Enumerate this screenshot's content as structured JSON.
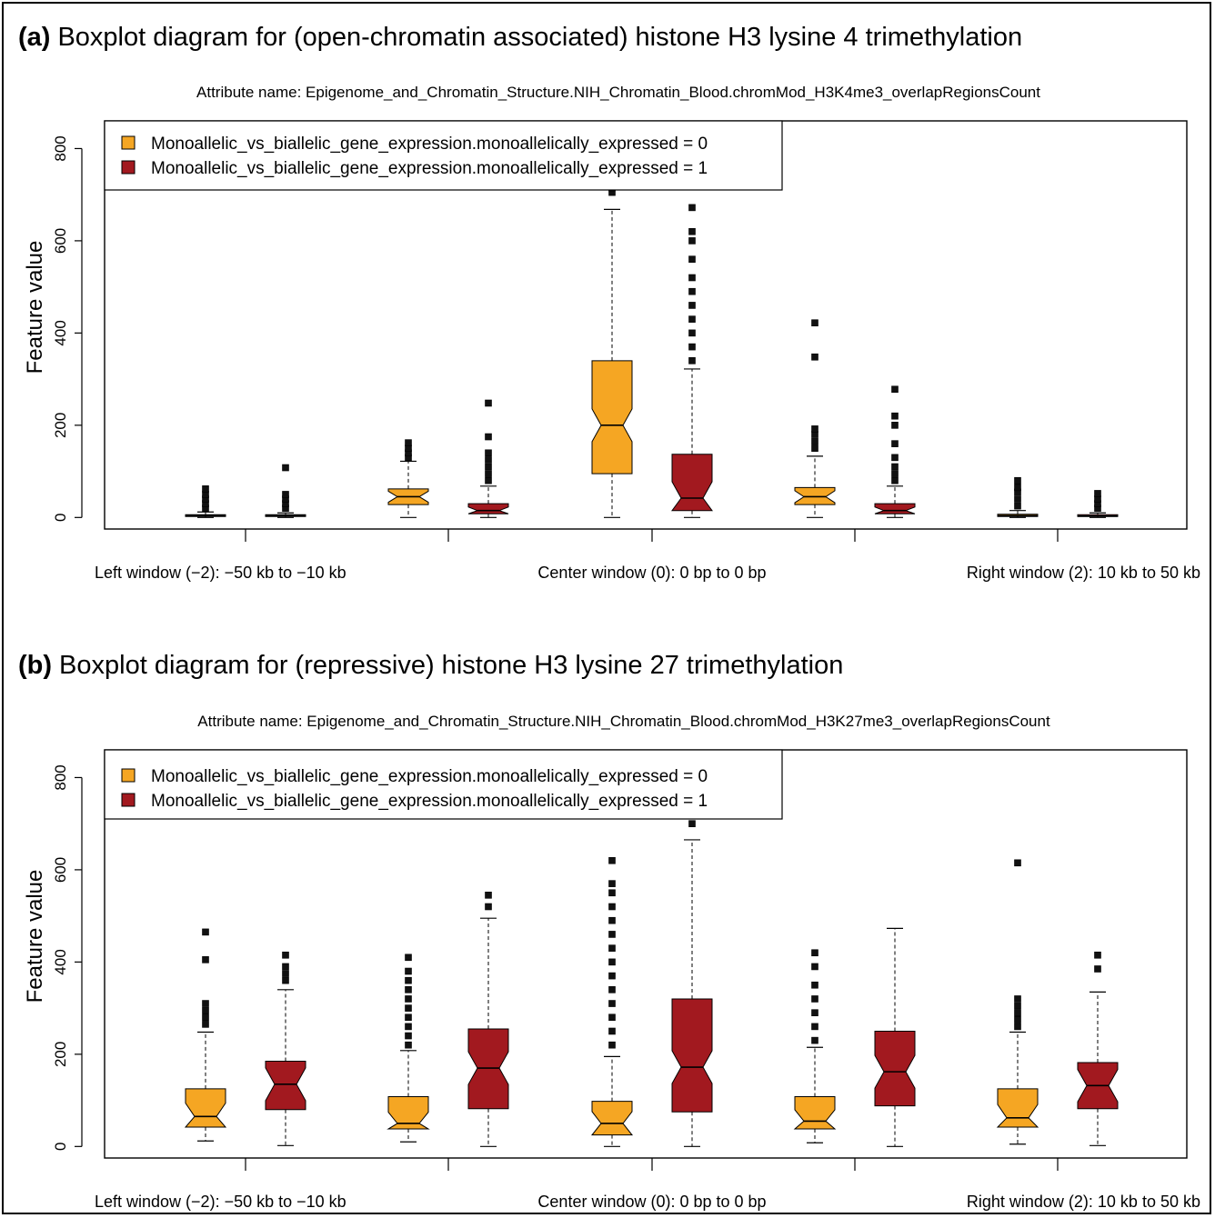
{
  "colors": {
    "group0": "#f5a623",
    "group1": "#a2191f",
    "outlier": "#111111"
  },
  "chart_data": [
    {
      "type": "boxplot",
      "panel_tag": "(a)",
      "title": "Boxplot diagram for (open-chromatin associated) histone H3 lysine 4 trimethylation",
      "subtitle": "Attribute name: Epigenome_and_Chromatin_Structure.NIH_Chromatin_Blood.chromMod_H3K4me3_overlapRegionsCount",
      "ylabel": "Feature value",
      "ylim": [
        -25,
        860
      ],
      "yticks": [
        0,
        200,
        400,
        600,
        800
      ],
      "legend": {
        "position": "top-left",
        "entries": [
          "Monoallelic_vs_biallelic_gene_expression.monoallelically_expressed = 0",
          "Monoallelic_vs_biallelic_gene_expression.monoallelically_expressed = 1"
        ]
      },
      "window_labels": [
        "Left window (−2): −50 kb to −10 kb",
        "Center window (0): 0 bp to 0 bp",
        "Right window (2): 10 kb to 50 kb"
      ],
      "boxes": [
        {
          "window": -2,
          "group": 0,
          "min": 0,
          "q1": 2,
          "median": 4,
          "q3": 6,
          "max": 12,
          "outliers": [
            20,
            30,
            40,
            50,
            62
          ]
        },
        {
          "window": -2,
          "group": 1,
          "min": 0,
          "q1": 2,
          "median": 4,
          "q3": 6,
          "max": 10,
          "outliers": [
            20,
            30,
            40,
            50,
            108
          ]
        },
        {
          "window": -1,
          "group": 0,
          "min": 0,
          "q1": 28,
          "median": 45,
          "q3": 62,
          "max": 122,
          "outliers": [
            130,
            140,
            150,
            162
          ]
        },
        {
          "window": -1,
          "group": 1,
          "min": 0,
          "q1": 8,
          "median": 15,
          "q3": 30,
          "max": 68,
          "outliers": [
            80,
            95,
            110,
            125,
            140,
            175,
            248
          ]
        },
        {
          "window": 0,
          "group": 0,
          "min": 0,
          "q1": 95,
          "median": 200,
          "q3": 340,
          "max": 668,
          "outliers": [
            705,
            715,
            782
          ]
        },
        {
          "window": 0,
          "group": 1,
          "min": 0,
          "q1": 15,
          "median": 42,
          "q3": 137,
          "max": 322,
          "outliers": [
            340,
            370,
            400,
            430,
            460,
            490,
            520,
            560,
            600,
            620,
            672,
            728
          ]
        },
        {
          "window": 1,
          "group": 0,
          "min": 0,
          "q1": 28,
          "median": 45,
          "q3": 65,
          "max": 133,
          "outliers": [
            150,
            165,
            180,
            192,
            348,
            422
          ]
        },
        {
          "window": 1,
          "group": 1,
          "min": 0,
          "q1": 8,
          "median": 15,
          "q3": 30,
          "max": 68,
          "outliers": [
            80,
            95,
            110,
            130,
            160,
            200,
            220,
            278
          ]
        },
        {
          "window": 2,
          "group": 0,
          "min": 0,
          "q1": 2,
          "median": 4,
          "q3": 7,
          "max": 15,
          "outliers": [
            25,
            40,
            55,
            65,
            80
          ]
        },
        {
          "window": 2,
          "group": 1,
          "min": 0,
          "q1": 2,
          "median": 3,
          "q3": 6,
          "max": 10,
          "outliers": [
            20,
            30,
            40,
            52
          ]
        }
      ]
    },
    {
      "type": "boxplot",
      "panel_tag": "(b)",
      "title": "Boxplot diagram for (repressive) histone H3 lysine 27 trimethylation",
      "subtitle": "Attribute name: Epigenome_and_Chromatin_Structure.NIH_Chromatin_Blood.chromMod_H3K27me3_overlapRegionsCount",
      "ylabel": "Feature value",
      "ylim": [
        -25,
        860
      ],
      "yticks": [
        0,
        200,
        400,
        600,
        800
      ],
      "legend": {
        "position": "top-left",
        "entries": [
          "Monoallelic_vs_biallelic_gene_expression.monoallelically_expressed = 0",
          "Monoallelic_vs_biallelic_gene_expression.monoallelically_expressed = 1"
        ]
      },
      "window_labels": [
        "Left window (−2): −50 kb to −10 kb",
        "Center window (0): 0 bp to 0 bp",
        "Right window (2): 10 kb to 50 kb"
      ],
      "boxes": [
        {
          "window": -2,
          "group": 0,
          "min": 12,
          "q1": 42,
          "median": 65,
          "q3": 125,
          "max": 248,
          "outliers": [
            265,
            280,
            295,
            310,
            405,
            465
          ]
        },
        {
          "window": -2,
          "group": 1,
          "min": 2,
          "q1": 80,
          "median": 135,
          "q3": 185,
          "max": 340,
          "outliers": [
            360,
            375,
            390,
            415
          ]
        },
        {
          "window": -1,
          "group": 0,
          "min": 10,
          "q1": 38,
          "median": 50,
          "q3": 108,
          "max": 208,
          "outliers": [
            220,
            240,
            260,
            280,
            300,
            320,
            340,
            360,
            380,
            410
          ]
        },
        {
          "window": -1,
          "group": 1,
          "min": 0,
          "q1": 82,
          "median": 170,
          "q3": 255,
          "max": 495,
          "outliers": [
            520,
            545
          ]
        },
        {
          "window": 0,
          "group": 0,
          "min": 0,
          "q1": 25,
          "median": 50,
          "q3": 98,
          "max": 195,
          "outliers": [
            220,
            250,
            280,
            310,
            340,
            370,
            400,
            430,
            460,
            490,
            520,
            550,
            570,
            620
          ]
        },
        {
          "window": 0,
          "group": 1,
          "min": 0,
          "q1": 75,
          "median": 172,
          "q3": 320,
          "max": 665,
          "outliers": [
            700,
            720,
            745,
            790
          ]
        },
        {
          "window": 1,
          "group": 0,
          "min": 8,
          "q1": 38,
          "median": 55,
          "q3": 108,
          "max": 215,
          "outliers": [
            230,
            260,
            290,
            320,
            350,
            390,
            420
          ]
        },
        {
          "window": 1,
          "group": 1,
          "min": 0,
          "q1": 88,
          "median": 162,
          "q3": 250,
          "max": 473,
          "outliers": []
        },
        {
          "window": 2,
          "group": 0,
          "min": 5,
          "q1": 42,
          "median": 62,
          "q3": 125,
          "max": 248,
          "outliers": [
            260,
            275,
            290,
            305,
            320,
            615
          ]
        },
        {
          "window": 2,
          "group": 1,
          "min": 2,
          "q1": 82,
          "median": 132,
          "q3": 182,
          "max": 335,
          "outliers": [
            385,
            415
          ]
        }
      ]
    }
  ]
}
